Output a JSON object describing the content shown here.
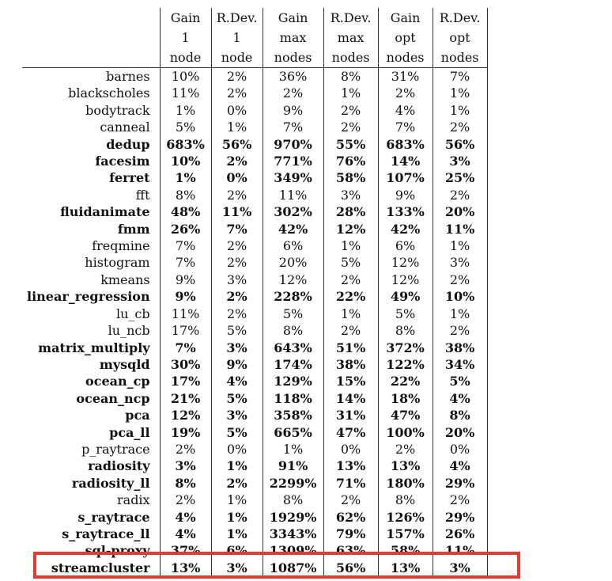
{
  "table": {
    "header_lines": [
      [
        "Gain",
        "R.Dev.",
        "Gain",
        "R.Dev.",
        "Gain",
        "R.Dev."
      ],
      [
        "1",
        "1",
        "max",
        "max",
        "opt",
        "opt"
      ],
      [
        "node",
        "node",
        "nodes",
        "nodes",
        "nodes",
        "nodes"
      ]
    ],
    "rows": [
      {
        "name": "barnes",
        "bold": false,
        "values": [
          "10%",
          "2%",
          "36%",
          "8%",
          "31%",
          "7%"
        ]
      },
      {
        "name": "blackscholes",
        "bold": false,
        "values": [
          "11%",
          "2%",
          "2%",
          "1%",
          "2%",
          "1%"
        ]
      },
      {
        "name": "bodytrack",
        "bold": false,
        "values": [
          "1%",
          "0%",
          "9%",
          "2%",
          "4%",
          "1%"
        ]
      },
      {
        "name": "canneal",
        "bold": false,
        "values": [
          "5%",
          "1%",
          "7%",
          "2%",
          "7%",
          "2%"
        ]
      },
      {
        "name": "dedup",
        "bold": true,
        "values": [
          "683%",
          "56%",
          "970%",
          "55%",
          "683%",
          "56%"
        ]
      },
      {
        "name": "facesim",
        "bold": true,
        "values": [
          "10%",
          "2%",
          "771%",
          "76%",
          "14%",
          "3%"
        ]
      },
      {
        "name": "ferret",
        "bold": true,
        "values": [
          "1%",
          "0%",
          "349%",
          "58%",
          "107%",
          "25%"
        ]
      },
      {
        "name": "fft",
        "bold": false,
        "values": [
          "8%",
          "2%",
          "11%",
          "3%",
          "9%",
          "2%"
        ]
      },
      {
        "name": "fluidanimate",
        "bold": true,
        "values": [
          "48%",
          "11%",
          "302%",
          "28%",
          "133%",
          "20%"
        ]
      },
      {
        "name": "fmm",
        "bold": true,
        "values": [
          "26%",
          "7%",
          "42%",
          "12%",
          "42%",
          "11%"
        ]
      },
      {
        "name": "freqmine",
        "bold": false,
        "values": [
          "7%",
          "2%",
          "6%",
          "1%",
          "6%",
          "1%"
        ]
      },
      {
        "name": "histogram",
        "bold": false,
        "values": [
          "7%",
          "2%",
          "20%",
          "5%",
          "12%",
          "3%"
        ]
      },
      {
        "name": "kmeans",
        "bold": false,
        "values": [
          "9%",
          "3%",
          "12%",
          "2%",
          "12%",
          "2%"
        ]
      },
      {
        "name": "linear_regression",
        "bold": true,
        "values": [
          "9%",
          "2%",
          "228%",
          "22%",
          "49%",
          "10%"
        ]
      },
      {
        "name": "lu_cb",
        "bold": false,
        "values": [
          "11%",
          "2%",
          "5%",
          "1%",
          "5%",
          "1%"
        ]
      },
      {
        "name": "lu_ncb",
        "bold": false,
        "values": [
          "17%",
          "5%",
          "8%",
          "2%",
          "8%",
          "2%"
        ]
      },
      {
        "name": "matrix_multiply",
        "bold": true,
        "values": [
          "7%",
          "3%",
          "643%",
          "51%",
          "372%",
          "38%"
        ]
      },
      {
        "name": "mysqld",
        "bold": true,
        "values": [
          "30%",
          "9%",
          "174%",
          "38%",
          "122%",
          "34%"
        ]
      },
      {
        "name": "ocean_cp",
        "bold": true,
        "values": [
          "17%",
          "4%",
          "129%",
          "15%",
          "22%",
          "5%"
        ]
      },
      {
        "name": "ocean_ncp",
        "bold": true,
        "values": [
          "21%",
          "5%",
          "118%",
          "14%",
          "18%",
          "4%"
        ]
      },
      {
        "name": "pca",
        "bold": true,
        "values": [
          "12%",
          "3%",
          "358%",
          "31%",
          "47%",
          "8%"
        ]
      },
      {
        "name": "pca_ll",
        "bold": true,
        "values": [
          "19%",
          "5%",
          "665%",
          "47%",
          "100%",
          "20%"
        ]
      },
      {
        "name": "p_raytrace",
        "bold": false,
        "values": [
          "2%",
          "0%",
          "1%",
          "0%",
          "2%",
          "0%"
        ]
      },
      {
        "name": "radiosity",
        "bold": true,
        "values": [
          "3%",
          "1%",
          "91%",
          "13%",
          "13%",
          "4%"
        ]
      },
      {
        "name": "radiosity_ll",
        "bold": true,
        "values": [
          "8%",
          "2%",
          "2299%",
          "71%",
          "180%",
          "29%"
        ]
      },
      {
        "name": "radix",
        "bold": false,
        "values": [
          "2%",
          "1%",
          "8%",
          "2%",
          "8%",
          "2%"
        ]
      },
      {
        "name": "s_raytrace",
        "bold": true,
        "values": [
          "4%",
          "1%",
          "1929%",
          "62%",
          "126%",
          "29%"
        ]
      },
      {
        "name": "s_raytrace_ll",
        "bold": true,
        "values": [
          "4%",
          "1%",
          "3343%",
          "79%",
          "157%",
          "26%"
        ]
      },
      {
        "name": "sql-proxy",
        "bold": true,
        "values": [
          "37%",
          "6%",
          "1309%",
          "63%",
          "58%",
          "11%"
        ]
      },
      {
        "name": "streamcluster",
        "bold": true,
        "values": [
          "13%",
          "3%",
          "1087%",
          "56%",
          "13%",
          "3%"
        ]
      }
    ]
  },
  "highlight": {
    "color": "#e53935",
    "row_name": "streamcluster"
  }
}
